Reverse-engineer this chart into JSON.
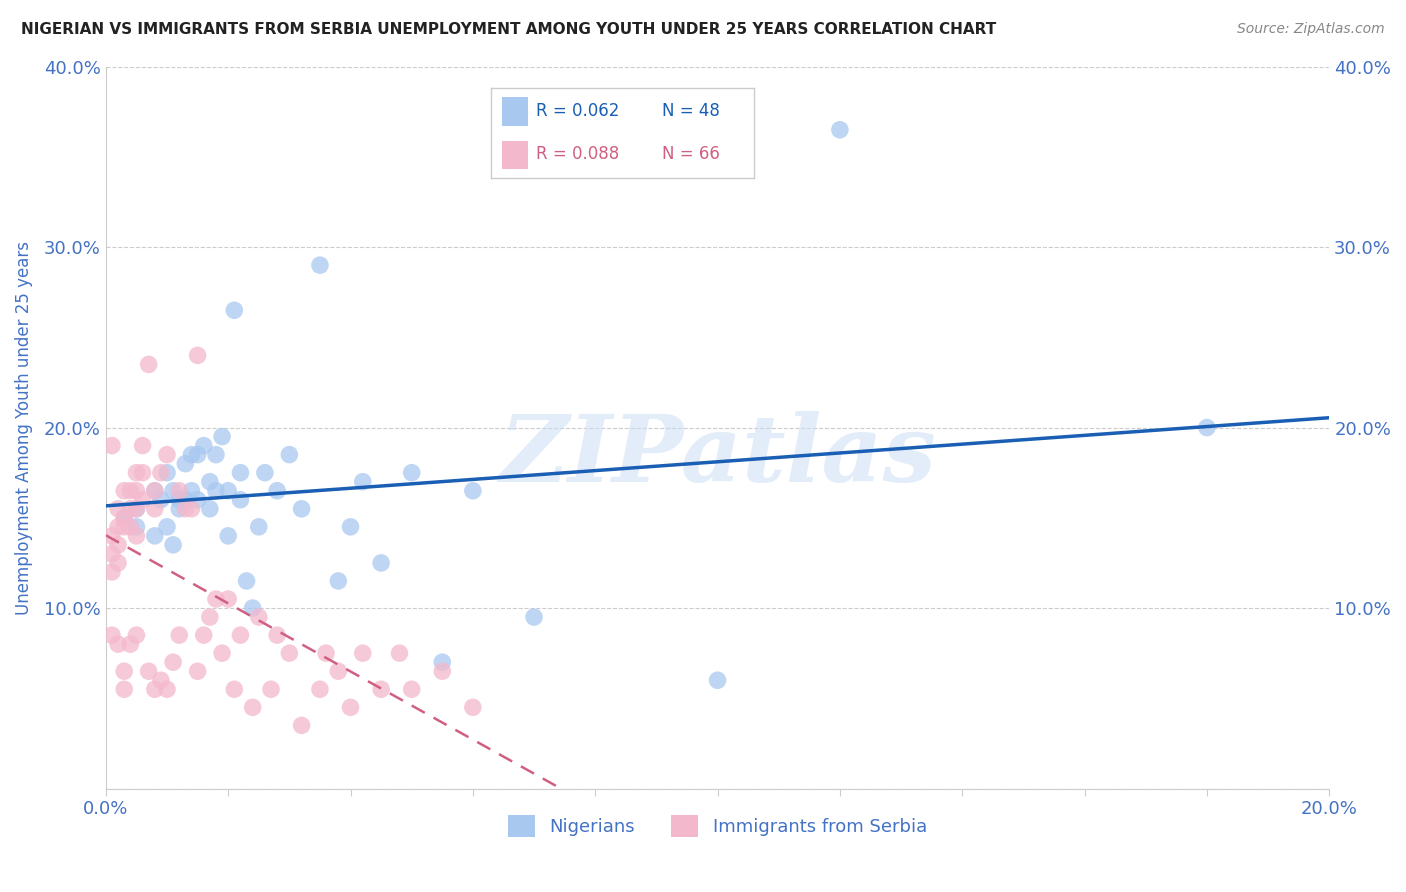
{
  "title": "NIGERIAN VS IMMIGRANTS FROM SERBIA UNEMPLOYMENT AMONG YOUTH UNDER 25 YEARS CORRELATION CHART",
  "source": "Source: ZipAtlas.com",
  "ylabel": "Unemployment Among Youth under 25 years",
  "xmin": 0.0,
  "xmax": 20.0,
  "ymin": 0.0,
  "ymax": 40.0,
  "xticks": [
    0.0,
    2.0,
    4.0,
    6.0,
    8.0,
    10.0,
    12.0,
    14.0,
    16.0,
    18.0,
    20.0
  ],
  "yticks": [
    0.0,
    10.0,
    20.0,
    30.0,
    40.0
  ],
  "color_nigerian": "#a8c8f0",
  "color_serbian": "#f4b8cc",
  "line_nigerian": "#1a5fb4",
  "line_serbian": "#d06080",
  "watermark_text": "ZIPatlas",
  "background_color": "#ffffff",
  "grid_color": "#cccccc",
  "tick_color": "#4472c4",
  "nigerian_x": [
    0.3,
    0.5,
    0.5,
    0.8,
    0.8,
    0.9,
    1.0,
    1.0,
    1.1,
    1.1,
    1.2,
    1.2,
    1.3,
    1.3,
    1.4,
    1.4,
    1.5,
    1.5,
    1.6,
    1.7,
    1.7,
    1.8,
    1.8,
    1.9,
    2.0,
    2.0,
    2.1,
    2.2,
    2.2,
    2.3,
    2.4,
    2.5,
    2.6,
    2.8,
    3.0,
    3.2,
    3.5,
    3.8,
    4.0,
    4.2,
    4.5,
    5.0,
    5.5,
    6.0,
    7.0,
    10.0,
    12.0,
    18.0
  ],
  "nigerian_y": [
    15.0,
    15.5,
    14.5,
    16.5,
    14.0,
    16.0,
    17.5,
    14.5,
    16.5,
    13.5,
    16.0,
    15.5,
    18.0,
    16.0,
    18.5,
    16.5,
    18.5,
    16.0,
    19.0,
    17.0,
    15.5,
    18.5,
    16.5,
    19.5,
    16.5,
    14.0,
    26.5,
    16.0,
    17.5,
    11.5,
    10.0,
    14.5,
    17.5,
    16.5,
    18.5,
    15.5,
    29.0,
    11.5,
    14.5,
    17.0,
    12.5,
    17.5,
    7.0,
    16.5,
    9.5,
    6.0,
    36.5,
    20.0
  ],
  "serbian_x": [
    0.1,
    0.1,
    0.1,
    0.1,
    0.1,
    0.2,
    0.2,
    0.2,
    0.2,
    0.2,
    0.3,
    0.3,
    0.3,
    0.3,
    0.3,
    0.4,
    0.4,
    0.4,
    0.4,
    0.5,
    0.5,
    0.5,
    0.5,
    0.5,
    0.6,
    0.6,
    0.6,
    0.7,
    0.7,
    0.8,
    0.8,
    0.8,
    0.9,
    0.9,
    1.0,
    1.0,
    1.1,
    1.2,
    1.2,
    1.3,
    1.4,
    1.5,
    1.5,
    1.6,
    1.7,
    1.8,
    1.9,
    2.0,
    2.1,
    2.2,
    2.4,
    2.5,
    2.7,
    2.8,
    3.0,
    3.2,
    3.5,
    3.6,
    3.8,
    4.0,
    4.2,
    4.5,
    4.8,
    5.0,
    5.5,
    6.0
  ],
  "serbian_y": [
    14.0,
    13.0,
    12.0,
    8.5,
    19.0,
    15.5,
    14.5,
    13.5,
    12.5,
    8.0,
    16.5,
    15.0,
    14.5,
    6.5,
    5.5,
    16.5,
    15.5,
    14.5,
    8.0,
    17.5,
    16.5,
    15.5,
    14.0,
    8.5,
    19.0,
    17.5,
    16.0,
    23.5,
    6.5,
    16.5,
    15.5,
    5.5,
    17.5,
    6.0,
    18.5,
    5.5,
    7.0,
    16.5,
    8.5,
    15.5,
    15.5,
    24.0,
    6.5,
    8.5,
    9.5,
    10.5,
    7.5,
    10.5,
    5.5,
    8.5,
    4.5,
    9.5,
    5.5,
    8.5,
    7.5,
    3.5,
    5.5,
    7.5,
    6.5,
    4.5,
    7.5,
    5.5,
    7.5,
    5.5,
    6.5,
    4.5
  ],
  "legend_r1": "R = 0.062",
  "legend_n1": "N = 48",
  "legend_r2": "R = 0.088",
  "legend_n2": "N = 66"
}
